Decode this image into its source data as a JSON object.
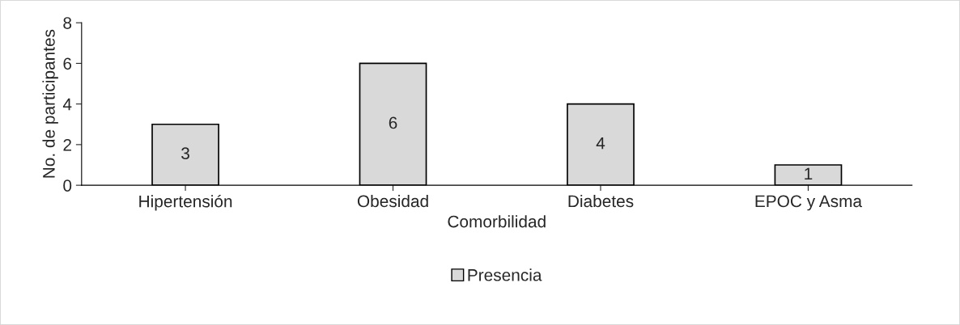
{
  "chart_data": {
    "type": "bar",
    "xlabel": "Comorbilidad",
    "ylabel": "No. de participantes",
    "categories": [
      "Hipertensión",
      "Obesidad",
      "Diabetes",
      "EPOC y Asma"
    ],
    "series": [
      {
        "name": "Presencia",
        "color": "#d9d9d9",
        "values": [
          3,
          6,
          4,
          1
        ]
      }
    ],
    "ylim": [
      0,
      8
    ],
    "yticks": [
      0,
      2,
      4,
      6,
      8
    ],
    "grid": false,
    "legend": "bottom",
    "data_labels": true
  }
}
